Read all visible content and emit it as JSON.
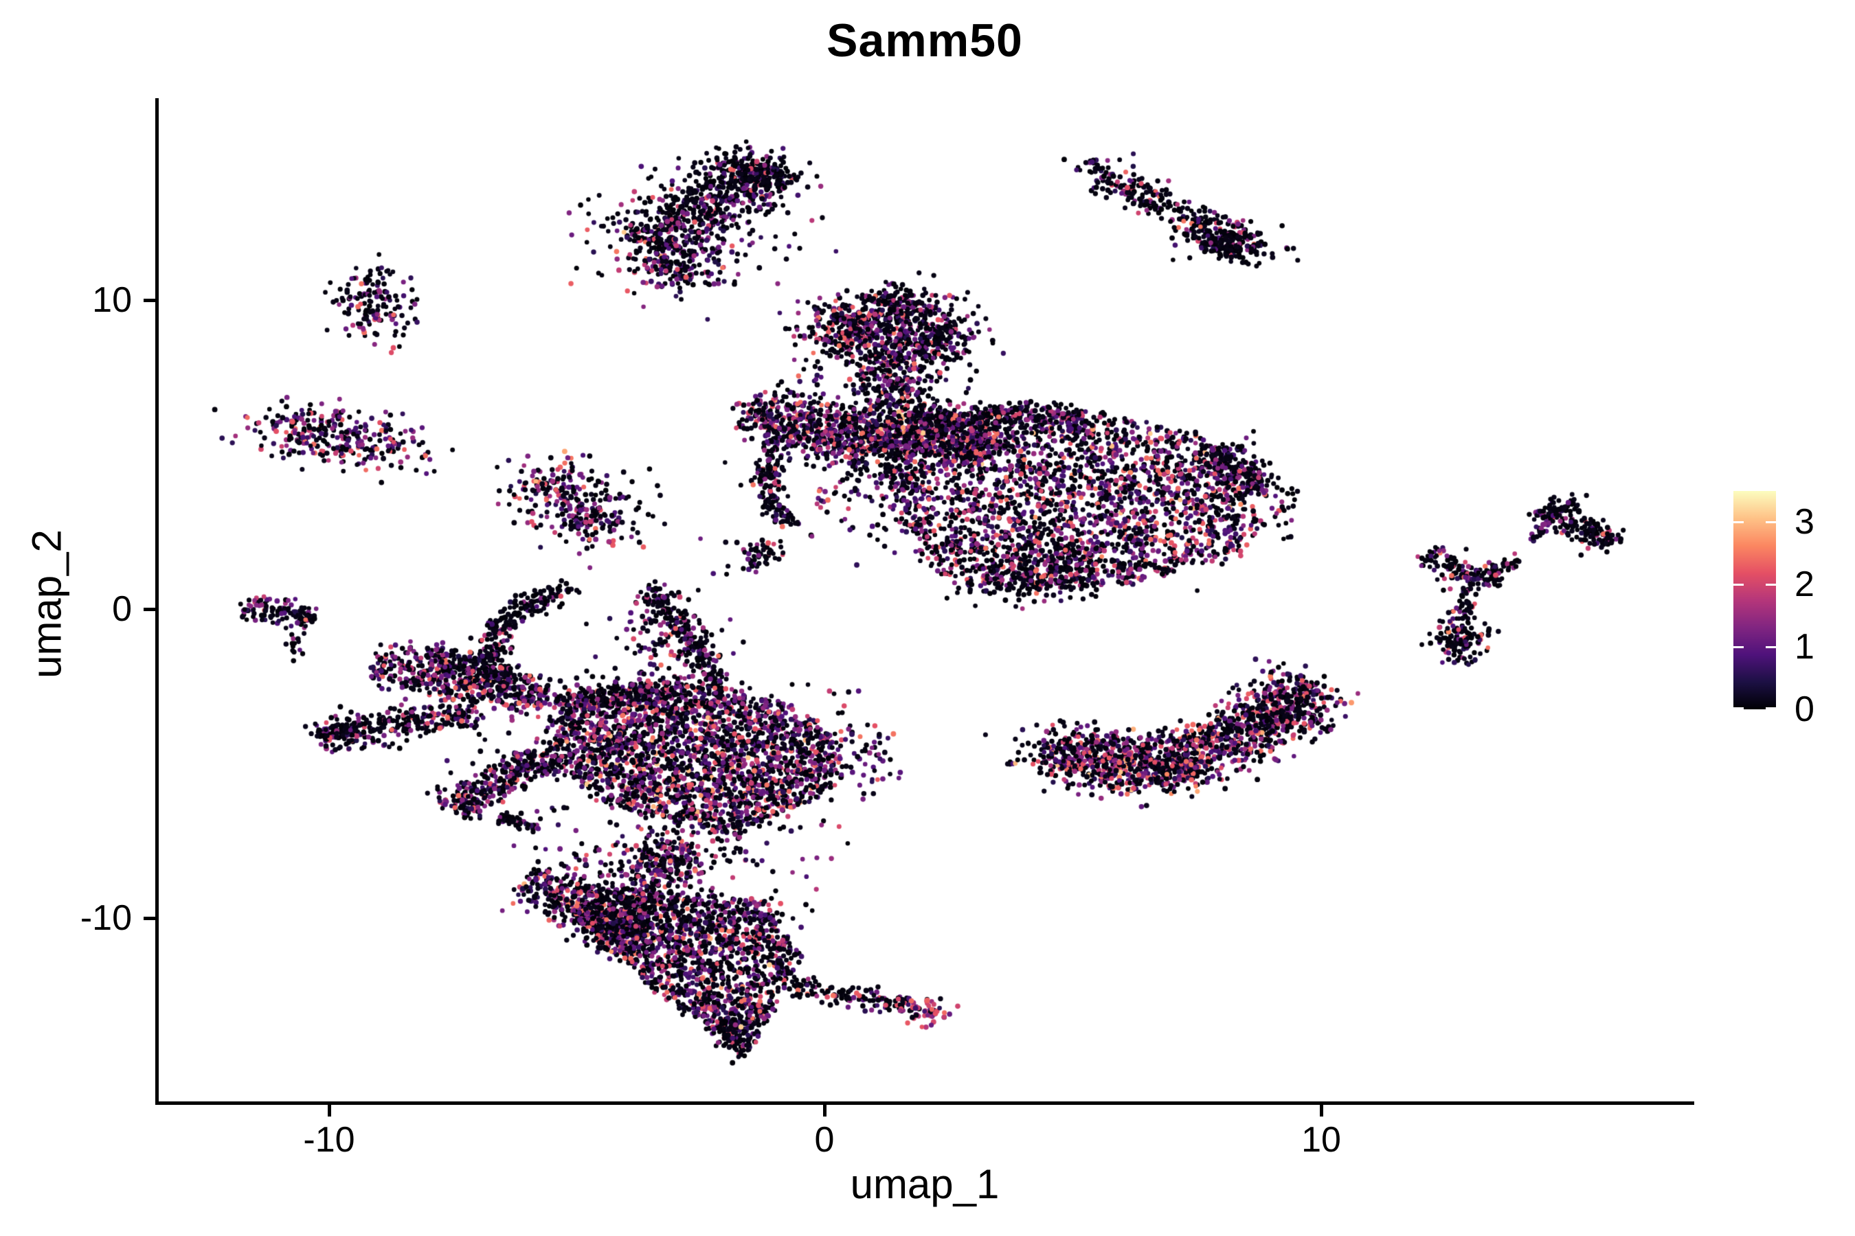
{
  "chart_data": {
    "type": "scatter",
    "title": "Samm50",
    "xlabel": "umap_1",
    "ylabel": "umap_2",
    "x_ticks": [
      {
        "value": -10,
        "label": "-10"
      },
      {
        "value": 0,
        "label": "0"
      },
      {
        "value": 10,
        "label": "10"
      }
    ],
    "y_ticks": [
      {
        "value": 10,
        "label": "10"
      },
      {
        "value": 0,
        "label": "0"
      },
      {
        "value": -10,
        "label": "-10"
      }
    ],
    "xlim": [
      -13.43,
      17.47
    ],
    "ylim": [
      -16.0,
      16.55
    ],
    "grid": false,
    "background": "#ffffff",
    "axis_color": "#000000",
    "legend": {
      "type": "colorbar",
      "position": "right",
      "vmin": 0,
      "vmax": 3.5,
      "ticks": [
        {
          "value": 3,
          "label": "3"
        },
        {
          "value": 2,
          "label": "2"
        },
        {
          "value": 1,
          "label": "1"
        },
        {
          "value": 0,
          "label": "0"
        }
      ]
    },
    "colormap": {
      "name": "magma",
      "stops": [
        "#000004",
        "#1c1044",
        "#4f127b",
        "#812581",
        "#b5367a",
        "#e55064",
        "#fb8761",
        "#fec287",
        "#fcfdbf"
      ]
    },
    "point_radius_px": 3.6,
    "seed": 1337,
    "value_bins": {
      "black": [
        0.02,
        0.16
      ],
      "purple": [
        0.45,
        1.6
      ],
      "pink": [
        1.75,
        2.5
      ],
      "orange": [
        2.55,
        3.2
      ]
    },
    "clusters": [
      {
        "t": "band",
        "n": 520,
        "x1": -3.73,
        "y1": 11.7,
        "x2": -1.15,
        "y2": 14.25,
        "w": 0.5,
        "p": [
          0.62,
          0.3,
          0.075,
          0.005
        ]
      },
      {
        "t": "blob",
        "n": 220,
        "cx": -1.45,
        "cy": 14.15,
        "sx": 0.5,
        "sy": 0.35,
        "rot": -20,
        "p": [
          0.8,
          0.17,
          0.03,
          0
        ]
      },
      {
        "t": "blob",
        "n": 160,
        "cx": -2.95,
        "cy": 11.1,
        "sx": 0.6,
        "sy": 0.45,
        "rot": 0,
        "p": [
          0.55,
          0.35,
          0.1,
          0
        ]
      },
      {
        "t": "blob",
        "n": 120,
        "cx": -2.6,
        "cy": 12.4,
        "sx": 1.1,
        "sy": 0.9,
        "rot": 0,
        "p": [
          0.55,
          0.35,
          0.1,
          0
        ]
      },
      {
        "t": "band",
        "n": 270,
        "x1": 5.55,
        "y1": 14.15,
        "x2": 8.5,
        "y2": 11.7,
        "w": 0.3,
        "p": [
          0.7,
          0.2,
          0.1,
          0
        ]
      },
      {
        "t": "blob",
        "n": 150,
        "cx": 8.2,
        "cy": 11.8,
        "sx": 0.5,
        "sy": 0.32,
        "rot": -25,
        "p": [
          0.85,
          0.12,
          0.03,
          0
        ]
      },
      {
        "t": "blob",
        "n": 25,
        "cx": 5.42,
        "cy": 14.3,
        "sx": 0.22,
        "sy": 0.13,
        "rot": -30,
        "p": [
          0.75,
          0.25,
          0,
          0
        ]
      },
      {
        "t": "blob",
        "n": 150,
        "cx": -9.05,
        "cy": 9.8,
        "sx": 0.42,
        "sy": 0.6,
        "rot": 0,
        "p": [
          0.62,
          0.3,
          0.08,
          0
        ]
      },
      {
        "t": "blob",
        "n": 290,
        "cx": -9.9,
        "cy": 5.6,
        "sx": 0.95,
        "sy": 0.5,
        "rot": -6,
        "p": [
          0.45,
          0.38,
          0.16,
          0.01
        ]
      },
      {
        "t": "blob",
        "n": 125,
        "cx": -5.5,
        "cy": 4.0,
        "sx": 0.5,
        "sy": 0.55,
        "rot": 0,
        "p": [
          0.5,
          0.35,
          0.14,
          0.01
        ]
      },
      {
        "t": "blob",
        "n": 90,
        "cx": -5.0,
        "cy": 3.15,
        "sx": 0.42,
        "sy": 0.55,
        "rot": 0,
        "p": [
          0.55,
          0.33,
          0.12,
          0
        ]
      },
      {
        "t": "blob",
        "n": 45,
        "cx": -4.55,
        "cy": 2.65,
        "sx": 0.3,
        "sy": 0.3,
        "rot": 0,
        "p": [
          0.6,
          0.3,
          0.1,
          0
        ]
      },
      {
        "t": "blob",
        "n": 40,
        "cx": -4.1,
        "cy": 3.4,
        "sx": 0.55,
        "sy": 0.55,
        "rot": 0,
        "p": [
          0.7,
          0.25,
          0.05,
          0
        ]
      },
      {
        "t": "band",
        "n": 115,
        "x1": -11.72,
        "y1": 0.1,
        "x2": -10.25,
        "y2": -0.3,
        "w": 0.2,
        "p": [
          0.6,
          0.3,
          0.1,
          0
        ]
      },
      {
        "t": "blob",
        "n": 14,
        "cx": -10.7,
        "cy": -1.2,
        "sx": 0.1,
        "sy": 0.2,
        "rot": 0,
        "p": [
          0.5,
          0.4,
          0.1,
          0
        ]
      },
      {
        "t": "blob",
        "n": 430,
        "cx": 1.3,
        "cy": 9.2,
        "sx": 0.8,
        "sy": 0.55,
        "rot": 12,
        "p": [
          0.6,
          0.3,
          0.1,
          0
        ]
      },
      {
        "t": "blob",
        "n": 150,
        "cx": 0.45,
        "cy": 9.0,
        "sx": 0.38,
        "sy": 0.5,
        "rot": 0,
        "p": [
          0.55,
          0.35,
          0.1,
          0
        ]
      },
      {
        "t": "blob",
        "n": 160,
        "cx": 2.2,
        "cy": 8.7,
        "sx": 0.42,
        "sy": 0.5,
        "rot": 0,
        "p": [
          0.7,
          0.25,
          0.05,
          0
        ]
      },
      {
        "t": "blob",
        "n": 70,
        "cx": 1.5,
        "cy": 9.95,
        "sx": 0.32,
        "sy": 0.22,
        "rot": 0,
        "p": [
          0.75,
          0.2,
          0.05,
          0
        ]
      },
      {
        "t": "band",
        "n": 170,
        "x1": 1.5,
        "y1": 8.3,
        "x2": 1.35,
        "y2": 6.6,
        "w": 0.28,
        "p": [
          0.6,
          0.3,
          0.1,
          0
        ]
      },
      {
        "t": "blob",
        "n": 110,
        "cx": 1.2,
        "cy": 7.4,
        "sx": 0.85,
        "sy": 0.8,
        "rot": 0,
        "p": [
          0.6,
          0.32,
          0.08,
          0
        ]
      },
      {
        "t": "band",
        "n": 950,
        "x1": -1.55,
        "y1": 6.35,
        "x2": 3.4,
        "y2": 5.2,
        "w": 0.4,
        "p": [
          0.5,
          0.36,
          0.13,
          0.01
        ]
      },
      {
        "t": "band",
        "n": 150,
        "x1": -1.2,
        "y1": 5.55,
        "x2": 0.9,
        "y2": 5.0,
        "w": 0.3,
        "p": [
          0.55,
          0.35,
          0.1,
          0
        ]
      },
      {
        "t": "arc",
        "n": 130,
        "x1": -1.05,
        "y1": 5.0,
        "cx": -1.4,
        "cy": 3.9,
        "x2": -0.75,
        "y2": 2.8,
        "w": 0.15,
        "p": [
          0.7,
          0.25,
          0.05,
          0
        ]
      },
      {
        "t": "blob",
        "n": 60,
        "cx": -1.35,
        "cy": 1.75,
        "sx": 0.3,
        "sy": 0.28,
        "rot": 0,
        "p": [
          0.75,
          0.2,
          0.05,
          0
        ]
      },
      {
        "t": "blob",
        "n": 90,
        "cx": 0.3,
        "cy": 4.3,
        "sx": 1.0,
        "sy": 0.85,
        "rot": 0,
        "p": [
          0.6,
          0.3,
          0.1,
          0
        ]
      },
      {
        "t": "poly",
        "n": 2500,
        "pts": [
          [
            1.55,
            6.35
          ],
          [
            5.3,
            6.45
          ],
          [
            7.6,
            5.6
          ],
          [
            8.85,
            3.9
          ],
          [
            8.5,
            1.8
          ],
          [
            6.4,
            0.9
          ],
          [
            3.6,
            0.65
          ],
          [
            2.05,
            1.25
          ],
          [
            1.5,
            3.3
          ],
          [
            1.1,
            5.2
          ]
        ],
        "p": [
          0.52,
          0.33,
          0.135,
          0.015
        ]
      },
      {
        "t": "band",
        "n": 280,
        "x1": 1.7,
        "y1": 6.25,
        "x2": 5.2,
        "y2": 6.3,
        "w": 0.22,
        "p": [
          0.72,
          0.22,
          0.06,
          0
        ]
      },
      {
        "t": "band",
        "n": 180,
        "x1": 7.9,
        "y1": 5.3,
        "x2": 8.7,
        "y2": 3.8,
        "w": 0.3,
        "p": [
          0.65,
          0.27,
          0.08,
          0
        ]
      },
      {
        "t": "blob",
        "n": 220,
        "cx": 4.3,
        "cy": 0.95,
        "sx": 0.85,
        "sy": 0.38,
        "rot": 5,
        "p": [
          0.7,
          0.22,
          0.08,
          0
        ]
      },
      {
        "t": "blob",
        "n": 90,
        "cx": 1.35,
        "cy": 4.4,
        "sx": 0.5,
        "sy": 1.0,
        "rot": 0,
        "p": [
          0.6,
          0.3,
          0.1,
          0
        ]
      },
      {
        "t": "blob",
        "n": 30,
        "cx": 9.1,
        "cy": 3.3,
        "sx": 0.3,
        "sy": 0.4,
        "rot": 0,
        "p": [
          0.7,
          0.25,
          0.05,
          0
        ]
      },
      {
        "t": "arc",
        "n": 1050,
        "x1": 4.5,
        "y1": -4.45,
        "cx": 6.8,
        "cy": -6.6,
        "x2": 9.6,
        "y2": -2.7,
        "w": 0.5,
        "p": [
          0.5,
          0.31,
          0.17,
          0.02
        ]
      },
      {
        "t": "blob",
        "n": 240,
        "cx": 9.35,
        "cy": -3.1,
        "sx": 0.45,
        "sy": 0.6,
        "rot": 0,
        "p": [
          0.6,
          0.28,
          0.11,
          0.01
        ]
      },
      {
        "t": "arc",
        "n": 220,
        "x1": 5.2,
        "y1": -4.1,
        "cx": 6.9,
        "cy": -5.2,
        "x2": 8.9,
        "y2": -2.95,
        "w": 0.3,
        "p": [
          0.55,
          0.33,
          0.12,
          0
        ]
      },
      {
        "t": "band",
        "n": 75,
        "x1": 12.15,
        "y1": 1.85,
        "x2": 12.95,
        "y2": 0.95,
        "w": 0.22,
        "p": [
          0.5,
          0.3,
          0.2,
          0
        ]
      },
      {
        "t": "band",
        "n": 55,
        "x1": 13.0,
        "y1": 0.9,
        "x2": 13.6,
        "y2": 1.1,
        "w": 0.18,
        "p": [
          0.75,
          0.2,
          0.05,
          0
        ]
      },
      {
        "t": "band",
        "n": 40,
        "x1": 12.95,
        "y1": 0.7,
        "x2": 12.8,
        "y2": -0.35,
        "w": 0.1,
        "p": [
          0.7,
          0.25,
          0.05,
          0
        ]
      },
      {
        "t": "blob",
        "n": 115,
        "cx": 12.8,
        "cy": -0.9,
        "sx": 0.28,
        "sy": 0.4,
        "rot": 0,
        "p": [
          0.7,
          0.2,
          0.06,
          0.04
        ]
      },
      {
        "t": "blob",
        "n": 6,
        "cx": 12.95,
        "cy": -1.7,
        "sx": 0.12,
        "sy": 0.1,
        "rot": 0,
        "p": [
          0.3,
          0.7,
          0,
          0
        ]
      },
      {
        "t": "band",
        "n": 25,
        "x1": 13.4,
        "y1": 1.2,
        "x2": 13.95,
        "y2": 1.6,
        "w": 0.1,
        "p": [
          0.75,
          0.2,
          0.05,
          0
        ]
      },
      {
        "t": "band",
        "n": 175,
        "x1": 14.35,
        "y1": 3.3,
        "x2": 15.9,
        "y2": 2.1,
        "w": 0.2,
        "p": [
          0.78,
          0.15,
          0.07,
          0
        ]
      },
      {
        "t": "blob",
        "n": 20,
        "cx": 15.05,
        "cy": 3.35,
        "sx": 0.16,
        "sy": 0.18,
        "rot": 0,
        "p": [
          0.8,
          0.2,
          0,
          0
        ]
      },
      {
        "t": "band",
        "n": 20,
        "x1": 14.15,
        "y1": 2.25,
        "x2": 14.6,
        "y2": 2.85,
        "w": 0.1,
        "p": [
          0.7,
          0.3,
          0,
          0
        ]
      },
      {
        "t": "arc",
        "n": 240,
        "x1": -5.1,
        "y1": 0.7,
        "cx": -7.1,
        "cy": -0.2,
        "x2": -6.55,
        "y2": -2.35,
        "w": 0.18,
        "p": [
          0.78,
          0.18,
          0.04,
          0
        ]
      },
      {
        "t": "arc",
        "n": 230,
        "x1": -3.55,
        "y1": 0.6,
        "cx": -2.5,
        "cy": -0.8,
        "x2": -2.2,
        "y2": -2.6,
        "w": 0.18,
        "p": [
          0.75,
          0.2,
          0.05,
          0
        ]
      },
      {
        "t": "blob",
        "n": 110,
        "cx": -3.3,
        "cy": -1.2,
        "sx": 0.7,
        "sy": 0.9,
        "rot": 0,
        "p": [
          0.55,
          0.35,
          0.1,
          0
        ]
      },
      {
        "t": "band",
        "n": 480,
        "x1": -9.0,
        "y1": -1.75,
        "x2": -5.6,
        "y2": -2.85,
        "w": 0.33,
        "p": [
          0.5,
          0.36,
          0.13,
          0.01
        ]
      },
      {
        "t": "band",
        "n": 120,
        "x1": -8.0,
        "y1": -1.4,
        "x2": -6.3,
        "y2": -2.15,
        "w": 0.22,
        "p": [
          0.7,
          0.25,
          0.05,
          0
        ]
      },
      {
        "t": "band",
        "n": 280,
        "x1": -10.2,
        "y1": -4.1,
        "x2": -6.95,
        "y2": -3.35,
        "w": 0.27,
        "p": [
          0.6,
          0.3,
          0.1,
          0
        ]
      },
      {
        "t": "band",
        "n": 80,
        "x1": -10.2,
        "y1": -4.1,
        "x2": -9.3,
        "y2": -3.85,
        "w": 0.13,
        "p": [
          0.8,
          0.15,
          0.05,
          0
        ]
      },
      {
        "t": "band",
        "n": 320,
        "x1": -7.5,
        "y1": -6.45,
        "x2": -5.6,
        "y2": -4.75,
        "w": 0.3,
        "p": [
          0.5,
          0.36,
          0.13,
          0.01
        ]
      },
      {
        "t": "band",
        "n": 45,
        "x1": -6.5,
        "y1": -6.7,
        "x2": -5.75,
        "y2": -7.05,
        "w": 0.1,
        "p": [
          0.8,
          0.2,
          0,
          0
        ]
      },
      {
        "t": "poly",
        "n": 2300,
        "pts": [
          [
            -5.45,
            -2.95
          ],
          [
            -3.0,
            -2.3
          ],
          [
            -0.6,
            -3.1
          ],
          [
            0.35,
            -4.4
          ],
          [
            0.0,
            -5.9
          ],
          [
            -1.8,
            -7.3
          ],
          [
            -4.3,
            -6.35
          ],
          [
            -5.7,
            -4.7
          ]
        ],
        "p": [
          0.5,
          0.35,
          0.135,
          0.015
        ]
      },
      {
        "t": "band",
        "n": 200,
        "x1": -5.4,
        "y1": -3.1,
        "x2": -2.8,
        "y2": -2.5,
        "w": 0.25,
        "p": [
          0.6,
          0.3,
          0.1,
          0
        ]
      },
      {
        "t": "blob",
        "n": 80,
        "cx": 0.6,
        "cy": -4.6,
        "sx": 0.5,
        "sy": 0.7,
        "rot": 0,
        "p": [
          0.55,
          0.35,
          0.1,
          0
        ]
      },
      {
        "t": "band",
        "n": 380,
        "x1": -5.85,
        "y1": -8.6,
        "x2": -3.75,
        "y2": -10.95,
        "w": 0.38,
        "p": [
          0.55,
          0.32,
          0.12,
          0.01
        ]
      },
      {
        "t": "band",
        "n": 280,
        "x1": -2.85,
        "y1": -7.6,
        "x2": -4.25,
        "y2": -10.4,
        "w": 0.32,
        "p": [
          0.6,
          0.3,
          0.1,
          0
        ]
      },
      {
        "t": "blob",
        "n": 150,
        "cx": -3.3,
        "cy": -7.9,
        "sx": 1.0,
        "sy": 0.55,
        "rot": 0,
        "p": [
          0.6,
          0.3,
          0.1,
          0
        ]
      },
      {
        "t": "poly",
        "n": 1500,
        "pts": [
          [
            -5.05,
            -8.9
          ],
          [
            -1.15,
            -9.4
          ],
          [
            -0.5,
            -11.3
          ],
          [
            -1.55,
            -14.4
          ],
          [
            -3.2,
            -12.6
          ],
          [
            -4.9,
            -10.2
          ]
        ],
        "p": [
          0.58,
          0.3,
          0.11,
          0.01
        ]
      },
      {
        "t": "band",
        "n": 90,
        "x1": -2.1,
        "y1": -13.2,
        "x2": -1.6,
        "y2": -14.45,
        "w": 0.18,
        "p": [
          0.8,
          0.15,
          0.05,
          0
        ]
      },
      {
        "t": "band",
        "n": 130,
        "x1": -0.75,
        "y1": -12.15,
        "x2": 1.75,
        "y2": -12.85,
        "w": 0.16,
        "p": [
          0.7,
          0.22,
          0.08,
          0
        ]
      },
      {
        "t": "blob",
        "n": 55,
        "cx": 2.05,
        "cy": -13.0,
        "sx": 0.28,
        "sy": 0.24,
        "rot": 0,
        "p": [
          0.15,
          0.3,
          0.55,
          0
        ]
      },
      {
        "t": "poly",
        "n": 220,
        "pts": [
          [
            -8.0,
            -2.0
          ],
          [
            0.0,
            -2.5
          ],
          [
            0.5,
            -8.0
          ],
          [
            -1.5,
            -13.0
          ],
          [
            -5.0,
            -11.0
          ],
          [
            -8.0,
            -5.0
          ]
        ],
        "p": [
          0.55,
          0.35,
          0.1,
          0
        ]
      }
    ]
  }
}
